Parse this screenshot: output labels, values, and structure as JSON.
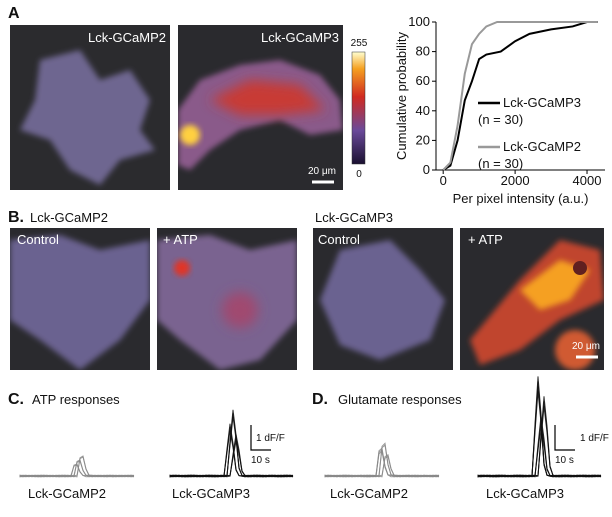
{
  "panels": {
    "A": {
      "label": "A",
      "images": [
        "Lck-GCaMP2",
        "Lck-GCaMP3"
      ],
      "colorbar": {
        "max": 255,
        "min": 0
      },
      "scale_bar": "20 μm"
    },
    "B": {
      "label": "B.",
      "groups": [
        "Lck-GCaMP2",
        "Lck-GCaMP3"
      ],
      "images": [
        "Control",
        "+ ATP",
        "Control",
        "+ ATP"
      ],
      "scale_bar": "20 μm"
    },
    "C": {
      "label": "C.",
      "title": "ATP responses",
      "scale_y": "1 dF/F",
      "scale_x": "10 s",
      "traces": [
        "Lck-GCaMP2",
        "Lck-GCaMP3"
      ]
    },
    "D": {
      "label": "D.",
      "title": "Glutamate responses",
      "scale_y": "1 dF/F",
      "scale_x": "10 s",
      "traces": [
        "Lck-GCaMP2",
        "Lck-GCaMP3"
      ]
    }
  },
  "chart_data": {
    "type": "line",
    "xlabel": "Per pixel intensity (a.u.)",
    "ylabel": "Cumulative probability",
    "xlim": [
      -200,
      4500
    ],
    "xticks": [
      0,
      2000,
      4000
    ],
    "ylim": [
      0,
      100
    ],
    "yticks": [
      0,
      20,
      40,
      60,
      80,
      100
    ],
    "series": [
      {
        "name": "Lck-GCaMP3",
        "color": "#000000",
        "x": [
          0,
          200,
          400,
          600,
          800,
          1000,
          1200,
          1600,
          2000,
          2400,
          3000,
          3600,
          4000,
          4300
        ],
        "values": [
          0,
          3,
          20,
          47,
          60,
          75,
          78,
          80,
          87,
          92,
          95,
          97,
          100,
          100
        ]
      },
      {
        "name": "Lck-GCaMP2",
        "color": "#999999",
        "x": [
          0,
          200,
          400,
          600,
          800,
          1000,
          1200,
          1500,
          4300
        ],
        "values": [
          0,
          5,
          30,
          65,
          85,
          92,
          97,
          100,
          100
        ]
      }
    ],
    "annotations": [
      "(n = 30)",
      "(n = 30)"
    ]
  }
}
